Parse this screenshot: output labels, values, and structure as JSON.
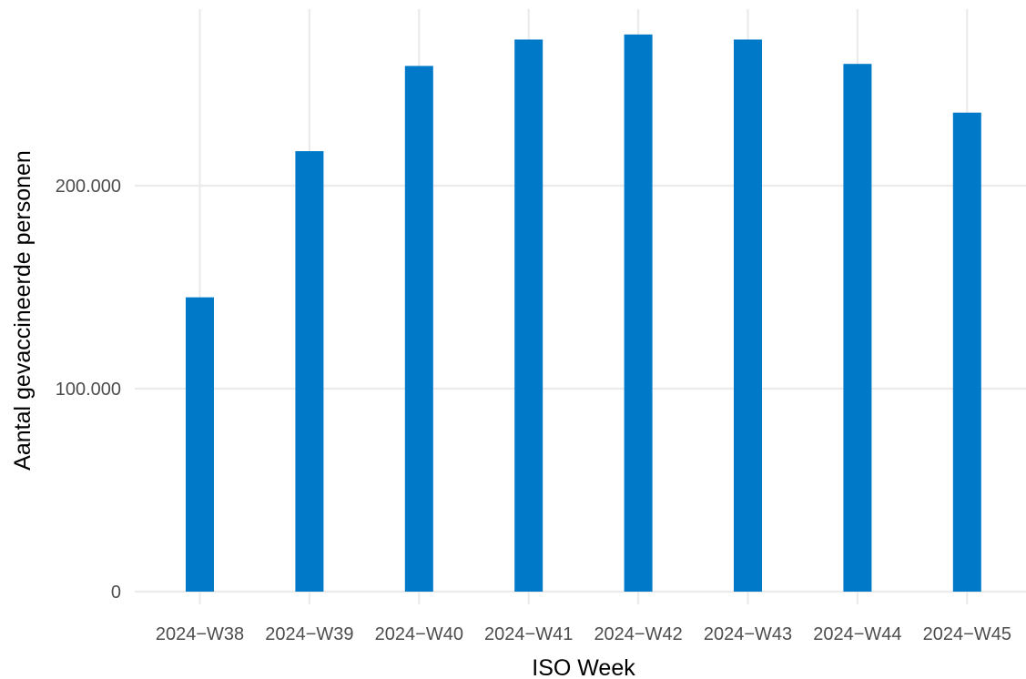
{
  "chart_data": {
    "type": "bar",
    "title": "",
    "xlabel": "ISO Week",
    "ylabel": "Aantal gevaccineerde personen",
    "categories": [
      "2024−W38",
      "2024−W39",
      "2024−W40",
      "2024−W41",
      "2024−W42",
      "2024−W43",
      "2024−W44",
      "2024−W45"
    ],
    "values": [
      145000,
      217000,
      259000,
      272000,
      274500,
      272000,
      260000,
      236000
    ],
    "ylim": [
      0,
      287000
    ],
    "yticks": [
      0,
      100000,
      200000
    ],
    "ytick_labels": [
      "0",
      "100.000",
      "200.000"
    ],
    "bar_color": "#0079C8",
    "grid": true,
    "legend": "none"
  }
}
